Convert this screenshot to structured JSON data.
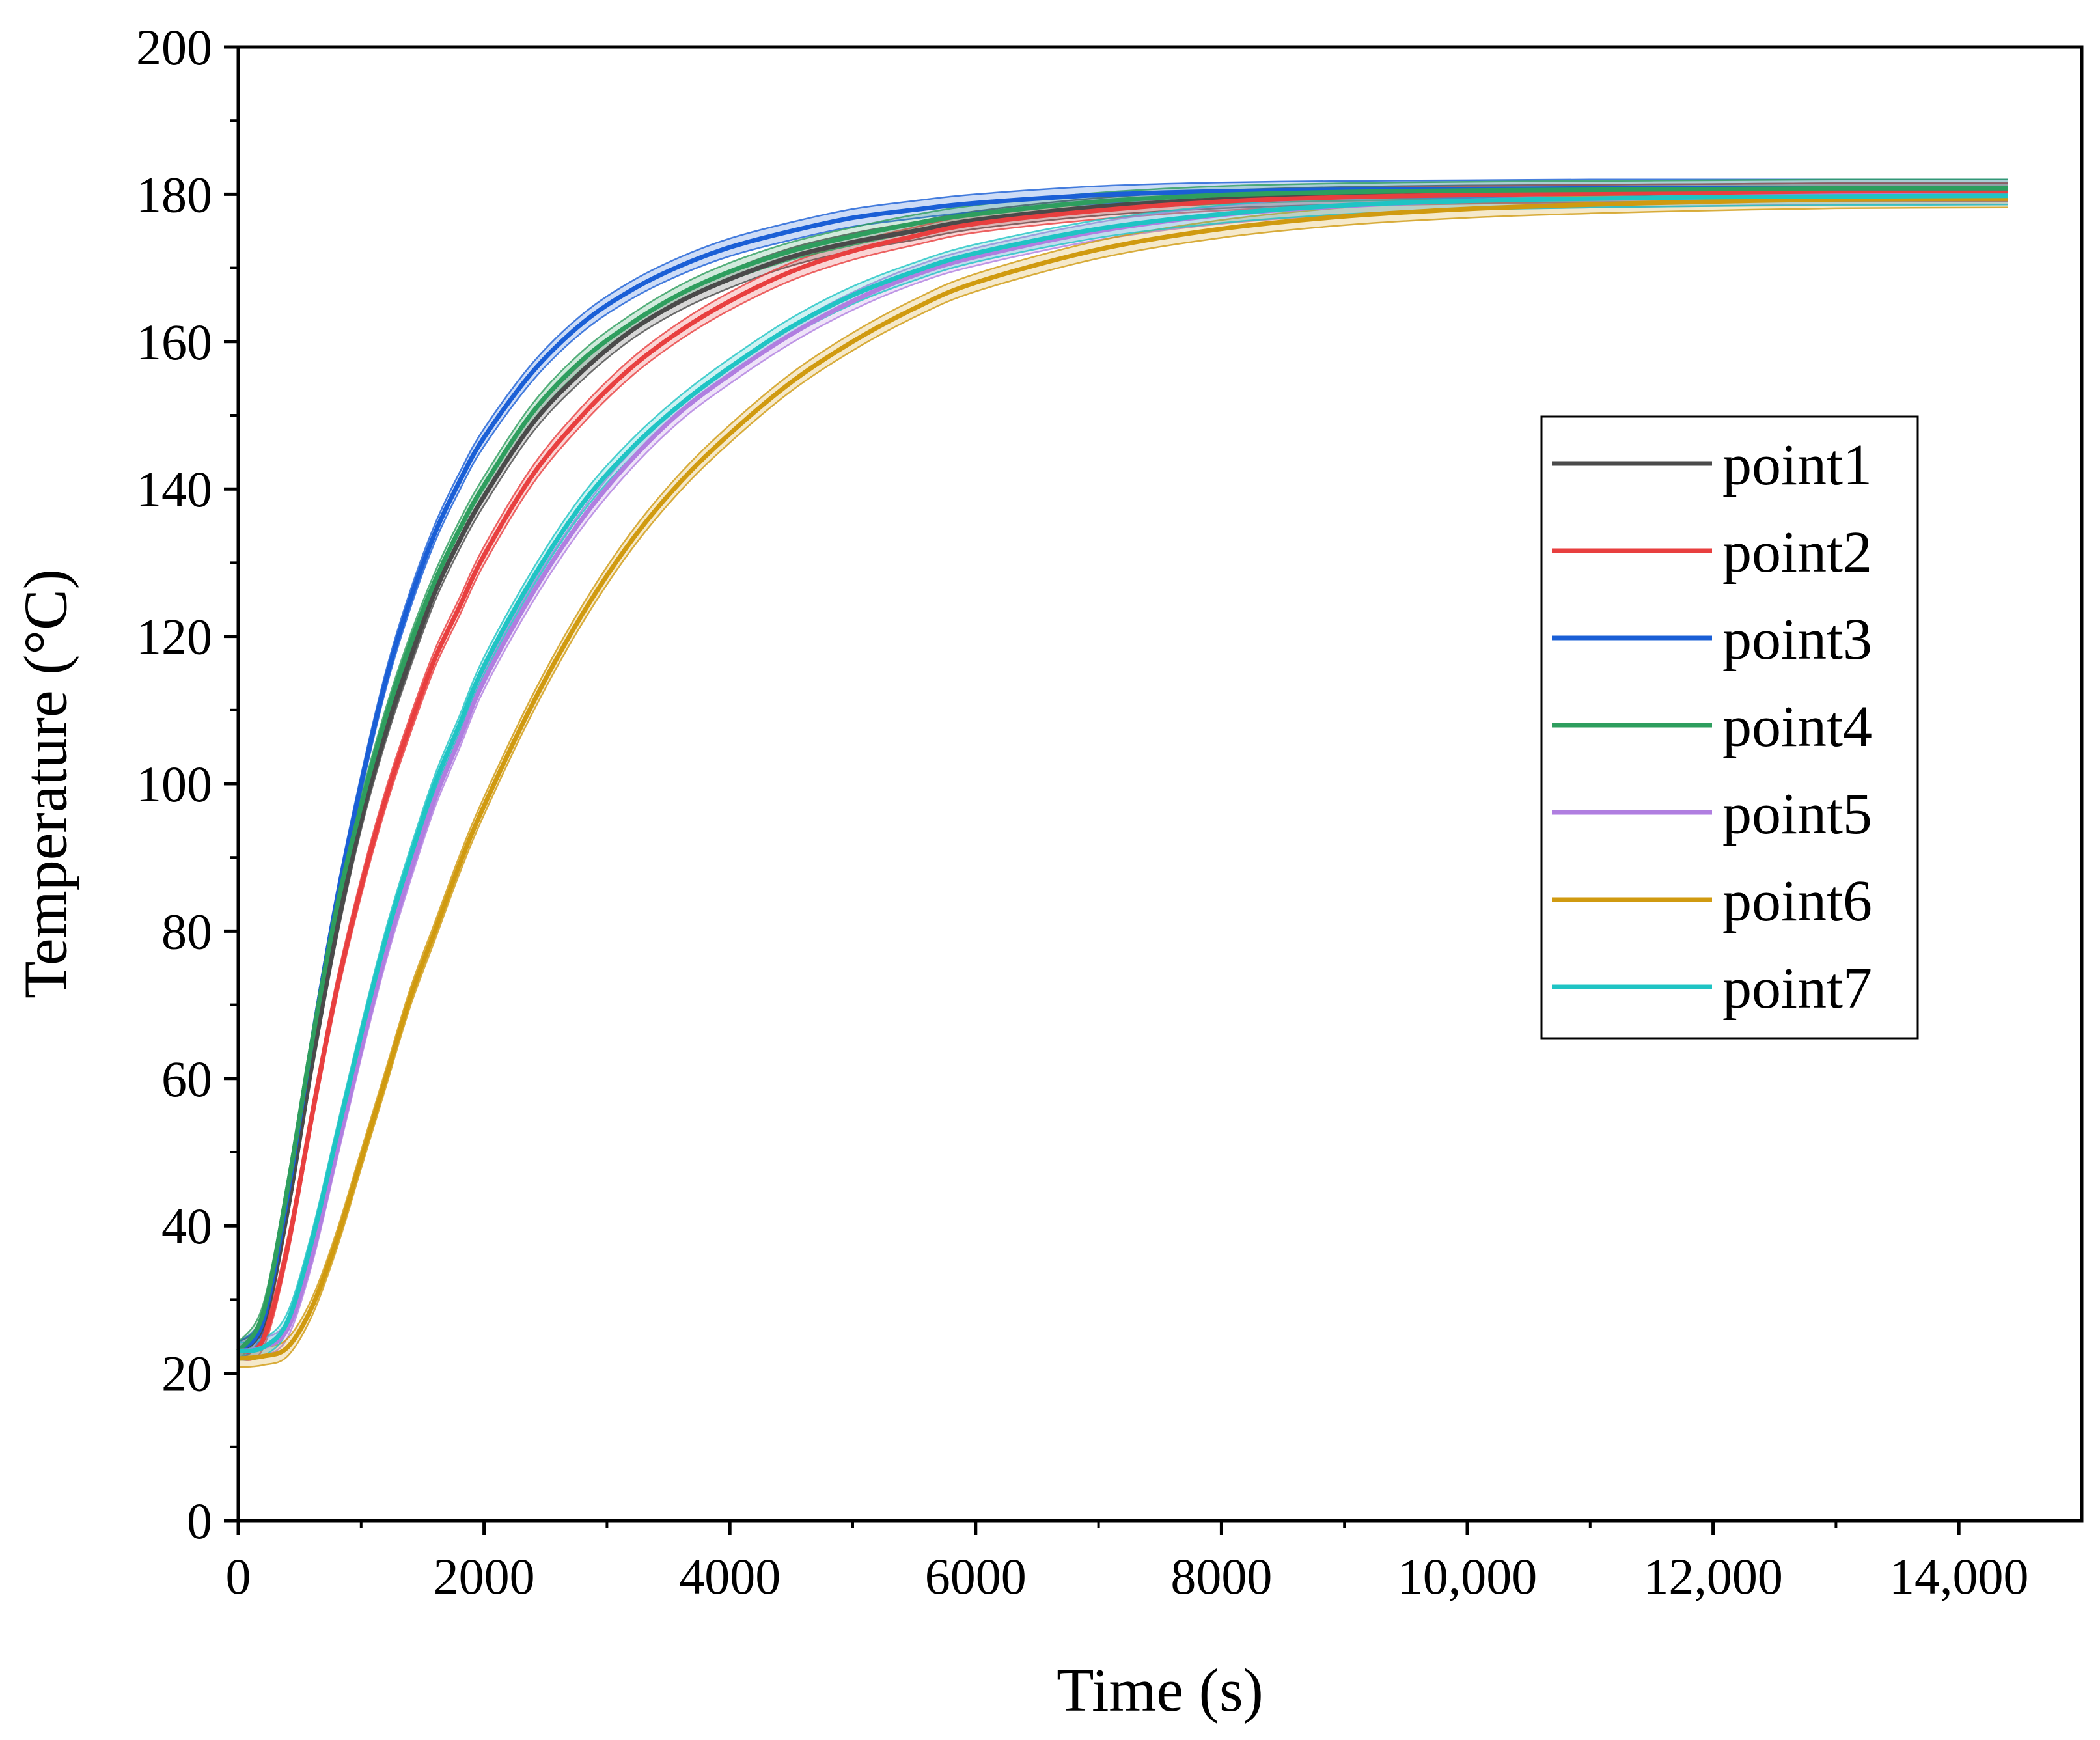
{
  "chart_data": {
    "type": "line",
    "title": "",
    "xlabel": "Time (s)",
    "ylabel": "Temperature (°C)",
    "xlim": [
      0,
      15000
    ],
    "ylim": [
      0,
      200
    ],
    "xticks": [
      0,
      2000,
      4000,
      6000,
      8000,
      10000,
      12000,
      14000
    ],
    "xtick_labels": [
      "0",
      "2000",
      "4000",
      "6000",
      "8000",
      "10,000",
      "12,000",
      "14,000"
    ],
    "yticks": [
      0,
      20,
      40,
      60,
      80,
      100,
      120,
      140,
      160,
      180,
      200
    ],
    "ytick_labels": [
      "0",
      "20",
      "40",
      "60",
      "80",
      "100",
      "120",
      "140",
      "160",
      "180",
      "200"
    ],
    "x": [
      0,
      200,
      400,
      600,
      800,
      1000,
      1200,
      1400,
      1600,
      1800,
      2000,
      2400,
      2800,
      3200,
      3600,
      4000,
      4500,
      5000,
      5500,
      6000,
      7000,
      8000,
      9000,
      10000,
      11000,
      12000,
      13000,
      14400
    ],
    "band_halfwidth": 1.2,
    "legend_position": "right-center",
    "series": [
      {
        "name": "point1",
        "color": "#4a4a4a",
        "values": [
          23.0,
          26.5,
          42,
          62,
          80,
          95,
          107,
          117,
          126,
          133,
          139,
          149,
          156,
          161.5,
          165.5,
          168.5,
          171.5,
          173.5,
          175,
          176.5,
          178.3,
          179.3,
          179.8,
          180.0,
          180.1,
          180.2,
          180.3,
          180.3
        ]
      },
      {
        "name": "point2",
        "color": "#e83f3f",
        "values": [
          23.0,
          24.5,
          37,
          55,
          72,
          86,
          98,
          108,
          117,
          124,
          131,
          142,
          150,
          156.5,
          161.5,
          165.5,
          169.5,
          172.3,
          174.3,
          176,
          177.8,
          179,
          179.6,
          179.9,
          180.1,
          180.2,
          180.3,
          180.3
        ]
      },
      {
        "name": "point3",
        "color": "#1a5fd6",
        "values": [
          23.0,
          27,
          44,
          65,
          84,
          100,
          114,
          125,
          134,
          141,
          147,
          156,
          162.5,
          167,
          170.3,
          172.8,
          175,
          176.8,
          177.9,
          178.8,
          179.9,
          180.4,
          180.6,
          180.7,
          180.8,
          180.8,
          180.8,
          180.8
        ]
      },
      {
        "name": "point4",
        "color": "#2e9e5e",
        "values": [
          23.0,
          28,
          45,
          65,
          83,
          97,
          109,
          119,
          127.5,
          134.5,
          140.5,
          150.5,
          157.5,
          162.5,
          166.5,
          169.5,
          172.3,
          174.3,
          176,
          177.3,
          179,
          179.9,
          180.3,
          180.5,
          180.6,
          180.7,
          180.8,
          180.8
        ]
      },
      {
        "name": "point5",
        "color": "#b07ee0",
        "values": [
          23.0,
          23.5,
          26,
          36,
          50,
          64,
          77,
          88,
          98,
          106,
          114,
          126,
          136,
          144,
          150.5,
          155.5,
          161,
          165.5,
          169,
          171.5,
          175,
          177.2,
          178.4,
          179.1,
          179.4,
          179.6,
          179.8,
          179.8
        ]
      },
      {
        "name": "point6",
        "color": "#d09a10",
        "values": [
          22.0,
          22.3,
          23.5,
          29,
          38,
          49,
          60,
          71,
          80,
          89,
          97,
          111,
          123,
          133,
          141,
          147.5,
          154.5,
          160,
          164.5,
          168,
          172.5,
          175.3,
          177,
          178,
          178.6,
          179,
          179.3,
          179.4
        ]
      },
      {
        "name": "point7",
        "color": "#1fc4c4",
        "values": [
          23.0,
          23.5,
          27,
          38,
          52,
          66,
          79,
          90,
          100,
          108,
          116,
          128,
          138,
          145.5,
          151.5,
          156.5,
          162,
          166.3,
          169.5,
          172,
          175.3,
          177.3,
          178.5,
          179.1,
          179.4,
          179.6,
          179.7,
          179.8
        ]
      }
    ]
  }
}
